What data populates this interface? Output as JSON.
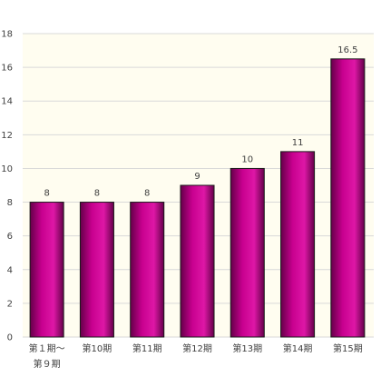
{
  "chart_data": {
    "type": "bar",
    "categories": [
      "第１期～第９期",
      "第10期",
      "第11期",
      "第12期",
      "第13期",
      "第14期",
      "第15期"
    ],
    "category_lines": [
      [
        "第１期～",
        "第９期"
      ],
      [
        "第10期"
      ],
      [
        "第11期"
      ],
      [
        "第12期"
      ],
      [
        "第13期"
      ],
      [
        "第14期"
      ],
      [
        "第15期"
      ]
    ],
    "values": [
      8,
      8,
      8,
      9,
      10,
      11,
      16.5
    ],
    "data_labels": [
      "8",
      "8",
      "8",
      "9",
      "10",
      "11",
      "16.5"
    ],
    "ylim": [
      0,
      18
    ],
    "yticks": [
      0,
      2,
      4,
      6,
      8,
      10,
      12,
      14,
      16,
      18
    ],
    "title": "",
    "xlabel": "",
    "ylabel": "",
    "grid": true,
    "legend": "none",
    "colors": {
      "plot_background": "#fffdf0",
      "grid": "#d9d9d9",
      "bar_dark": "#650049",
      "bar_mid": "#c8008f",
      "bar_light": "#de17a6",
      "bar_outline": "#1a1a1a",
      "text": "#404040"
    }
  }
}
